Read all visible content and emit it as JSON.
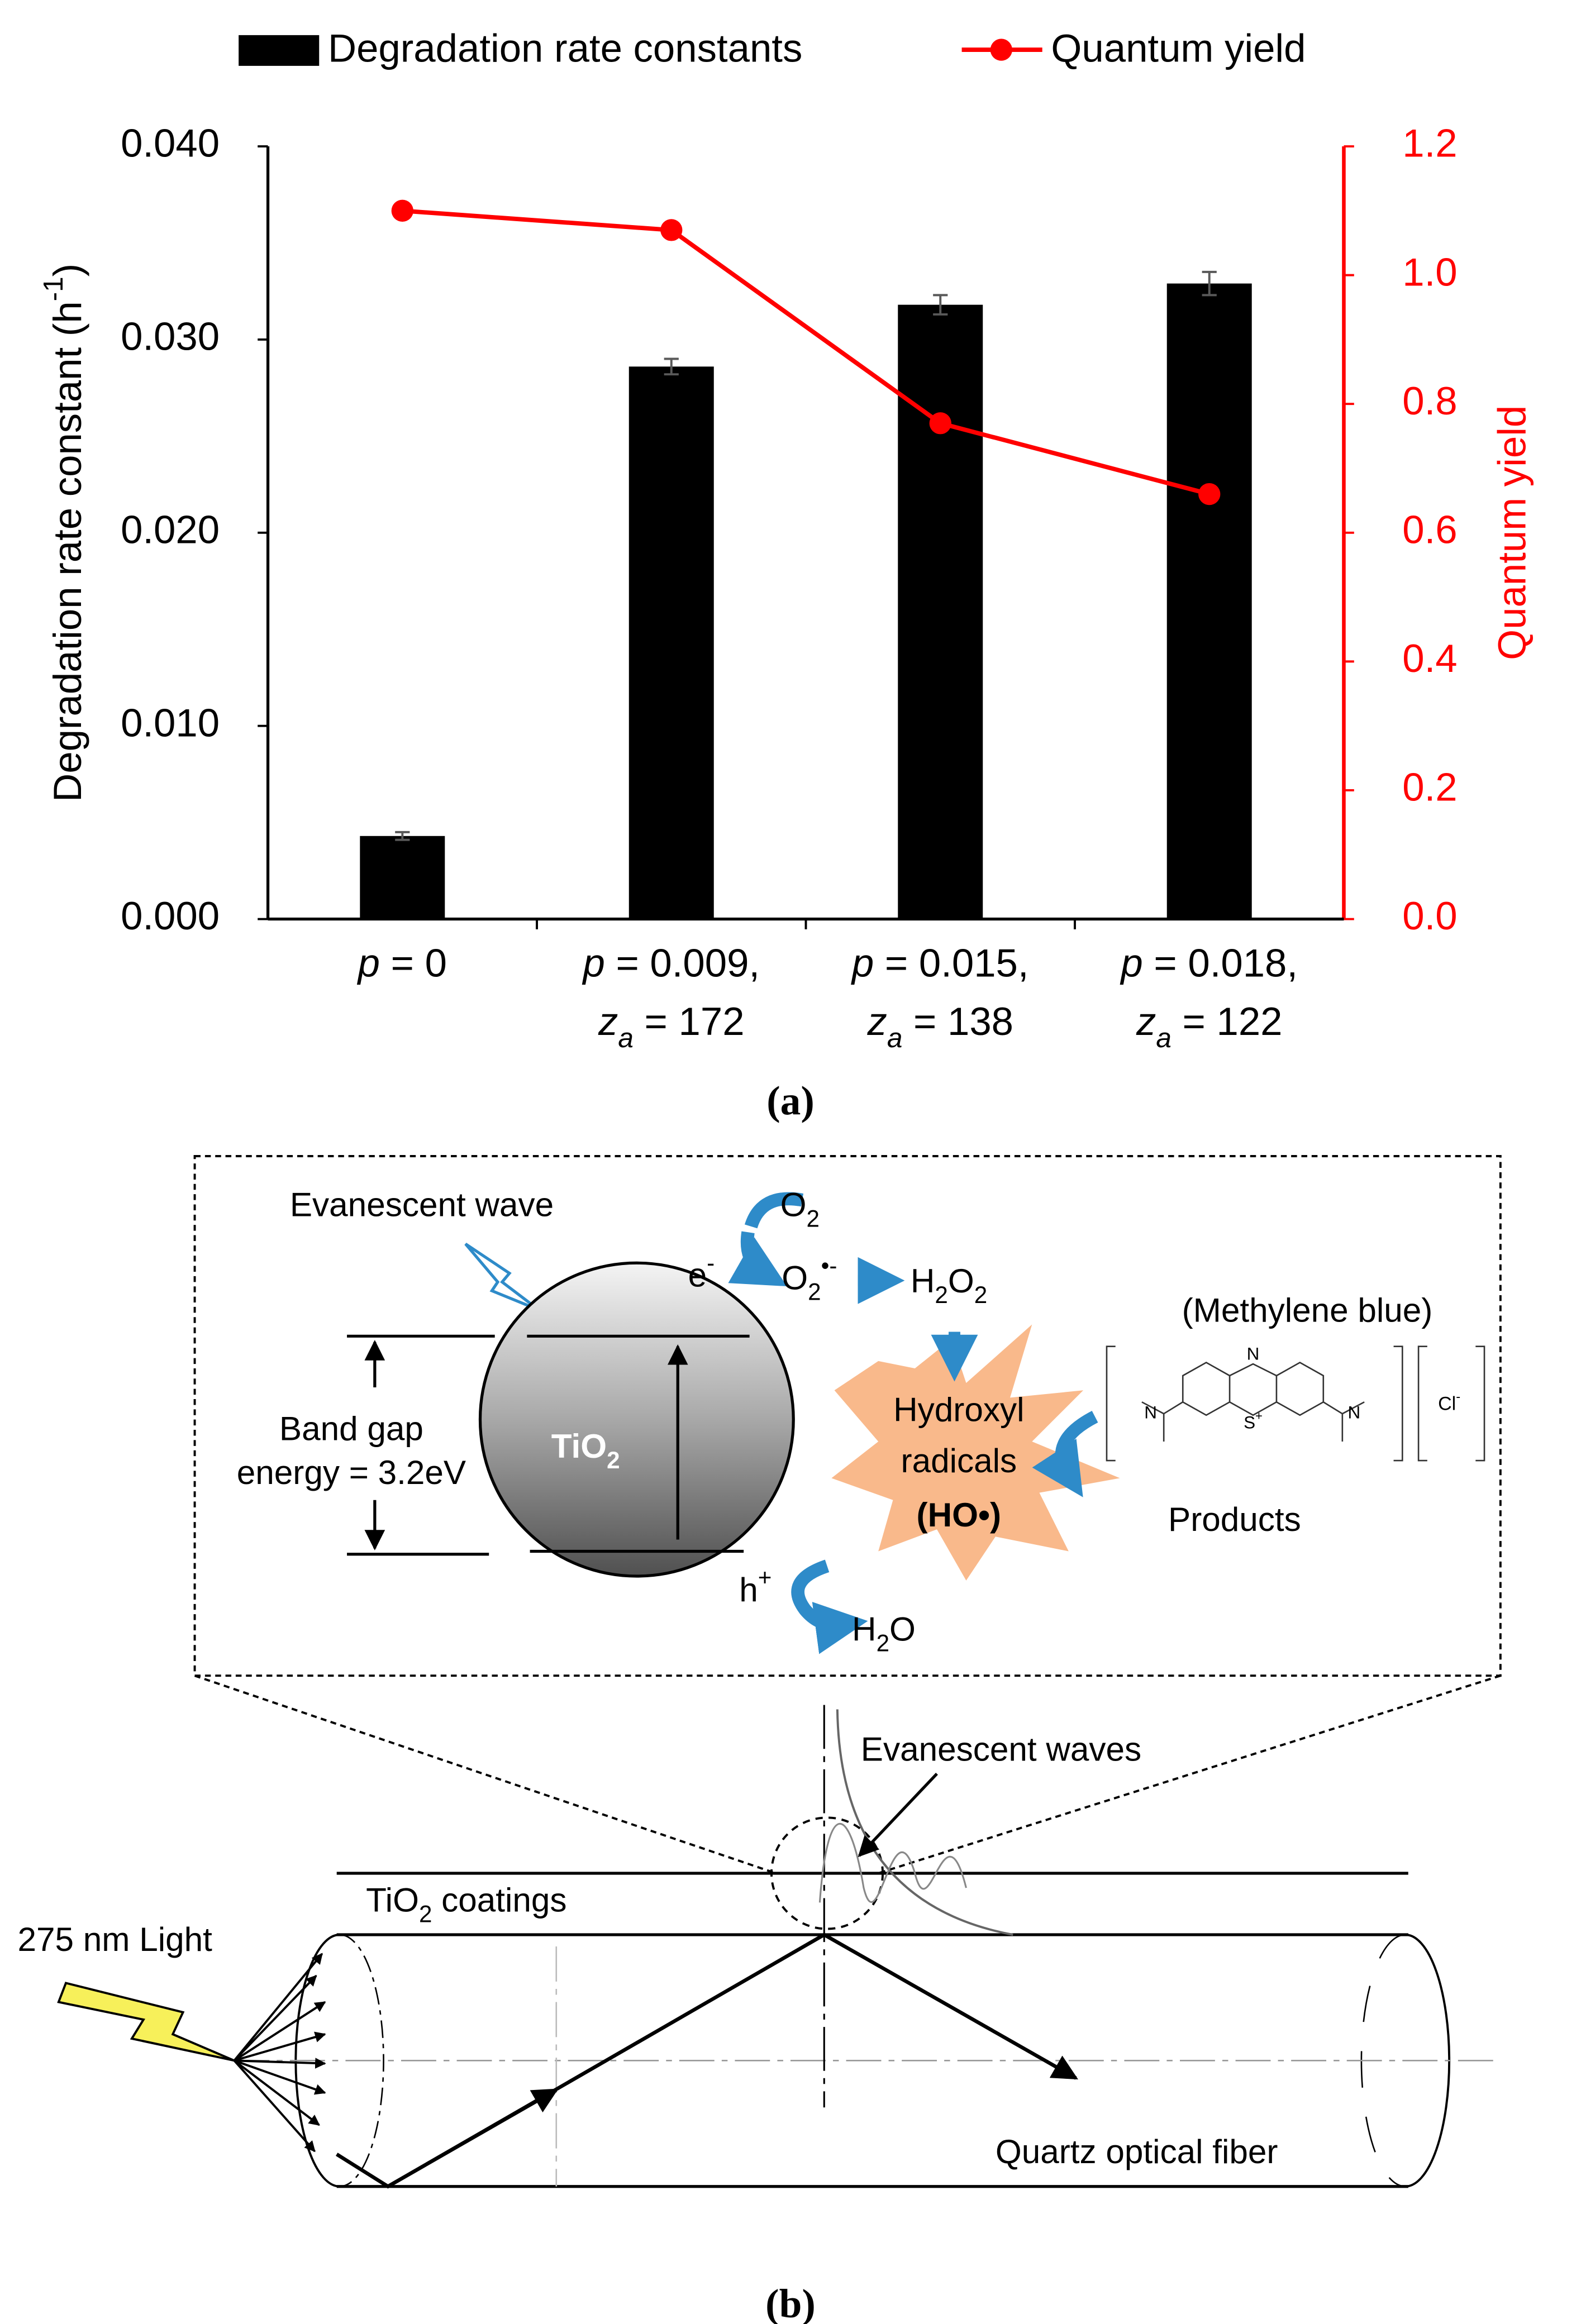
{
  "chart_data": {
    "type": "bar",
    "legend": "top",
    "categories": [
      [
        "p = 0"
      ],
      [
        "p = 0.009,",
        "za = 172"
      ],
      [
        "p = 0.015,",
        "za = 138"
      ],
      [
        "p = 0.018,",
        "za = 122"
      ]
    ],
    "series": [
      {
        "name": "Degradation rate constants",
        "color": "#000000",
        "values": [
          0.0043,
          0.0286,
          0.0318,
          0.0329
        ],
        "errors": [
          0.0002,
          0.0004,
          0.0005,
          0.0006
        ]
      },
      {
        "name": "Quantum yield",
        "color": "#ff0000",
        "type": "line",
        "axis": "y2",
        "values": [
          1.1,
          1.07,
          0.77,
          0.66
        ]
      }
    ],
    "ylabel": "Degradation rate constant (h-1)",
    "y2label": "Quantum yield",
    "ylim": [
      0,
      0.04
    ],
    "yticks": [
      {
        "value": 0,
        "label": "0.000"
      },
      {
        "value": 0.01,
        "label": "0.010"
      },
      {
        "value": 0.02,
        "label": "0.020"
      },
      {
        "value": 0.03,
        "label": "0.030"
      },
      {
        "value": 0.04,
        "label": "0.040"
      }
    ],
    "y2lim": [
      0,
      1.2
    ],
    "y2ticks": [
      {
        "value": 0,
        "label": "0.0"
      },
      0.2,
      0.4,
      0.6,
      0.8,
      {
        "value": 1,
        "label": "1.0"
      },
      1.2
    ],
    "caption": "(a)"
  },
  "diagram": {
    "caption": "(b)",
    "evanescent_wave": "Evanescent wave",
    "o2": "O2",
    "electron": "e-",
    "superoxide": "O2•-",
    "h2o2": "H2O2",
    "methylene_blue": "(Methylene blue)",
    "band_gap": [
      "Band gap",
      "energy = 3.2eV"
    ],
    "tio2": "TiO2",
    "hydroxyl": [
      "Hydroxyl",
      "radicals",
      "(HO•)"
    ],
    "molecule_n": "N",
    "molecule_s": "S+",
    "chloride": "Cl-",
    "products": "Products",
    "hole": "h+",
    "h2o": "H2O",
    "evanescent_waves": "Evanescent waves",
    "coatings": "TiO2 coatings",
    "light": "275 nm Light",
    "fiber": "Quartz optical fiber"
  }
}
